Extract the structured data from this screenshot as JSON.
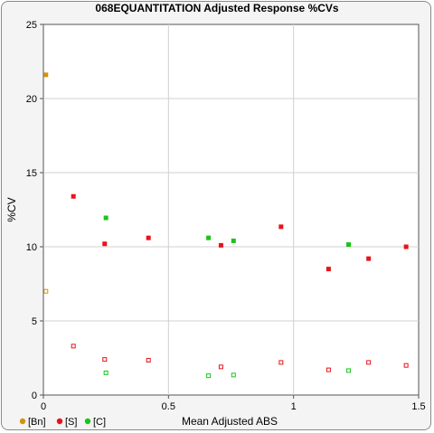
{
  "chart_data": {
    "type": "scatter",
    "title": "068EQUANTITATION Adjusted Response %CVs",
    "xlabel": "Mean Adjusted ABS",
    "ylabel": "%CV",
    "xlim": [
      0,
      1.5
    ],
    "ylim": [
      0,
      25
    ],
    "x_ticks": [
      "0",
      "0.5",
      "1",
      "1.5"
    ],
    "y_ticks": [
      "0",
      "5",
      "10",
      "15",
      "20",
      "25"
    ],
    "grid": true,
    "legend_position": "bottom-left",
    "series": [
      {
        "name": "[Bn]",
        "color": "#d4920e",
        "filled": [
          [
            0.01,
            21.6
          ]
        ],
        "hollow": [
          [
            0.01,
            7.0
          ]
        ]
      },
      {
        "name": "[S]",
        "color": "#e8131a",
        "filled": [
          [
            0.12,
            13.4
          ],
          [
            0.245,
            10.2
          ],
          [
            0.42,
            10.6
          ],
          [
            0.71,
            10.1
          ],
          [
            0.95,
            11.35
          ],
          [
            1.14,
            8.5
          ],
          [
            1.3,
            9.2
          ],
          [
            1.45,
            10.0
          ]
        ],
        "hollow": [
          [
            0.12,
            3.3
          ],
          [
            0.245,
            2.4
          ],
          [
            0.42,
            2.35
          ],
          [
            0.71,
            1.9
          ],
          [
            0.95,
            2.2
          ],
          [
            1.14,
            1.7
          ],
          [
            1.3,
            2.2
          ],
          [
            1.45,
            2.0
          ]
        ]
      },
      {
        "name": "[C]",
        "color": "#1ac41a",
        "filled": [
          [
            0.25,
            11.95
          ],
          [
            0.66,
            10.6
          ],
          [
            0.76,
            10.4
          ],
          [
            1.22,
            10.15
          ]
        ],
        "hollow": [
          [
            0.25,
            1.5
          ],
          [
            0.66,
            1.3
          ],
          [
            0.76,
            1.35
          ],
          [
            1.22,
            1.65
          ]
        ]
      }
    ]
  }
}
